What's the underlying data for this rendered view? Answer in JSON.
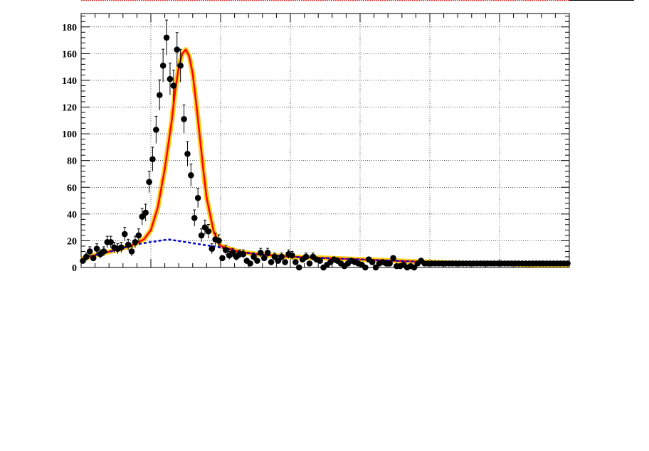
{
  "chart_data": {
    "type": "scatter",
    "title": "",
    "xlabel": "",
    "ylabel": "",
    "xlim": [
      0,
      140
    ],
    "ylim": [
      0,
      190
    ],
    "grid": true,
    "yticks": [
      0,
      20,
      40,
      60,
      80,
      100,
      120,
      140,
      160,
      180
    ],
    "ytick_labels": [
      "0",
      "20",
      "40",
      "60",
      "80",
      "100",
      "120",
      "140",
      "160",
      "180"
    ],
    "xticks": [
      20,
      40,
      60,
      80,
      100,
      120
    ],
    "series": [
      {
        "kind": "points_with_errors",
        "color": "#000000",
        "x": [
          0.5,
          1.5,
          2.5,
          3.5,
          4.5,
          5.5,
          6.5,
          7.5,
          8.5,
          9.5,
          10.5,
          11.5,
          12.5,
          13.5,
          14.5,
          15.5,
          16.5,
          17.5,
          18.5,
          19.5,
          20.5,
          21.5,
          22.5,
          23.5,
          24.5,
          25.5,
          26.5,
          27.5,
          28.5,
          29.5,
          30.5,
          31.5,
          32.5,
          33.5,
          34.5,
          35.5,
          36.5,
          37.5,
          38.5,
          39.5,
          40.5,
          41.5,
          42.5,
          43.5,
          44.5,
          45.5,
          46.5,
          47.5,
          48.5,
          49.5,
          50.5,
          51.5,
          52.5,
          53.5,
          54.5,
          55.5,
          56.5,
          57.5,
          58.5,
          59.5,
          60.5,
          61.5,
          62.5,
          63.5,
          64.5,
          65.5,
          66.5,
          67.5,
          68.5,
          69.5,
          70.5,
          71.5,
          72.5,
          73.5,
          74.5,
          75.5,
          76.5,
          77.5,
          78.5,
          79.5,
          80.5,
          81.5,
          82.5,
          83.5,
          84.5,
          85.5,
          86.5,
          87.5,
          88.5,
          89.5,
          90.5,
          91.5,
          92.5,
          93.5,
          94.5,
          95.5,
          96.5,
          97.5,
          98.5,
          99.5,
          100.5,
          101.5,
          102.5,
          103.5,
          104.5,
          105.5,
          106.5,
          107.5,
          108.5,
          109.5,
          110.5,
          111.5,
          112.5,
          113.5,
          114.5,
          115.5,
          116.5,
          117.5,
          118.5,
          119.5,
          120.5,
          121.5,
          122.5,
          123.5,
          124.5,
          125.5,
          126.5,
          127.5,
          128.5,
          129.5,
          130.5,
          131.5,
          132.5,
          133.5,
          134.5,
          135.5,
          136.5,
          137.5,
          138.5,
          139.5
        ],
        "y": [
          5,
          8,
          12,
          7,
          14,
          10,
          12,
          19,
          19,
          15,
          14,
          15,
          25,
          17,
          12,
          19,
          24,
          38,
          41,
          64,
          81,
          103,
          129,
          151,
          172,
          141,
          136,
          163,
          151,
          111,
          85,
          69,
          37,
          52,
          24,
          30,
          27,
          14,
          21,
          20,
          7,
          13,
          9,
          11,
          8,
          10,
          10,
          5,
          3,
          8,
          5,
          11,
          7,
          11,
          4,
          8,
          5,
          8,
          4,
          10,
          9,
          4,
          0,
          6,
          8,
          3,
          8,
          6,
          5,
          0,
          2,
          4,
          6,
          5,
          3,
          1,
          3,
          5,
          4,
          3,
          2,
          0,
          6,
          4,
          0,
          3,
          4,
          3,
          3,
          7,
          1,
          1,
          2,
          0,
          1,
          0,
          3,
          5,
          3,
          3,
          3,
          3,
          3,
          3,
          3,
          3,
          3,
          3,
          3,
          3,
          3,
          3,
          3,
          3,
          3,
          3,
          3,
          3,
          3,
          3,
          3,
          3,
          3,
          3,
          3,
          3,
          3,
          3,
          3,
          3,
          3,
          3,
          3,
          3,
          3,
          3,
          3,
          3,
          3,
          3
        ]
      },
      {
        "kind": "line",
        "color": "#ff0000",
        "x": [
          0,
          5,
          10,
          15,
          18,
          20,
          22,
          24,
          26,
          27,
          28,
          29,
          30,
          31,
          32,
          33,
          34,
          35,
          36,
          38,
          40,
          45,
          50,
          55,
          60,
          70,
          80,
          90,
          100,
          110,
          120,
          130,
          140
        ],
        "y": [
          6,
          10,
          13,
          17,
          21,
          28,
          45,
          74,
          110,
          133,
          150,
          160,
          163,
          158,
          145,
          123,
          99,
          74,
          52,
          27,
          16,
          12,
          10,
          9,
          8,
          7,
          6,
          5,
          4,
          3,
          3,
          2,
          2
        ]
      },
      {
        "kind": "line",
        "color": "#0000cc",
        "dashed": true,
        "x": [
          0,
          5,
          10,
          15,
          20,
          25,
          30,
          35,
          40,
          45,
          50,
          60,
          70,
          80,
          90,
          100,
          110,
          120,
          130,
          140
        ],
        "y": [
          6,
          10,
          13,
          17,
          19,
          21,
          19,
          17,
          15,
          12,
          10,
          8,
          7,
          6,
          5,
          4,
          3,
          3,
          2,
          2
        ]
      }
    ]
  }
}
